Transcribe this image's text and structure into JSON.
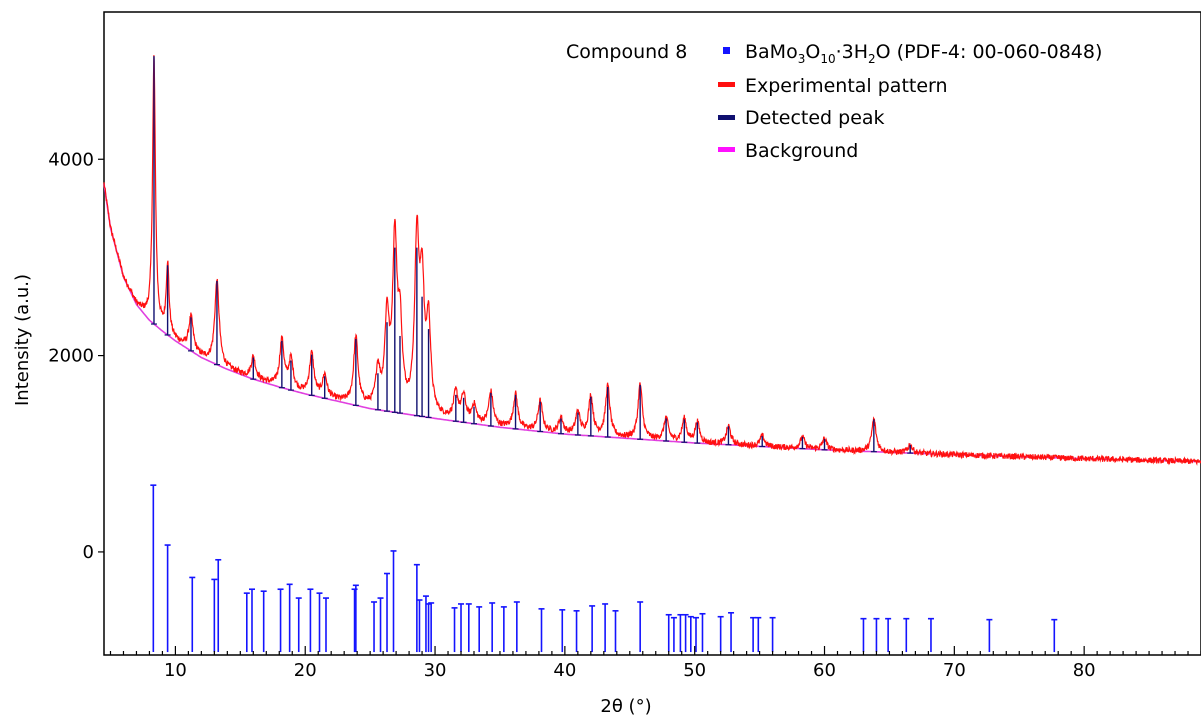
{
  "chart_data": {
    "type": "line",
    "xlabel": "2θ (°)",
    "ylabel": "Intensity (a.u.)",
    "xlim": [
      4.5,
      89
    ],
    "ylim": [
      -1050,
      5500
    ],
    "x_ticks": [
      10,
      20,
      30,
      40,
      50,
      60,
      70,
      80
    ],
    "y_ticks": [
      0,
      2000,
      4000
    ],
    "grid": false,
    "legend_position": "top-right",
    "compound_label": "Compound 8",
    "legend": [
      {
        "label_main": "BaMo",
        "sub1": "3",
        "mid1": "O",
        "sub2": "10",
        "mid2": "·3H",
        "sub3": "2",
        "label_tail": "O (PDF-4: 00-060-0848)",
        "color": "#1414ff",
        "marker": "square"
      },
      {
        "label": "Experimental pattern",
        "color": "#ff1010",
        "marker": "line"
      },
      {
        "label": "Detected peak",
        "color": "#101070",
        "marker": "line"
      },
      {
        "label": "Background",
        "color": "#ff10ff",
        "marker": "line"
      }
    ],
    "background": {
      "name": "Background",
      "color": "#e040e0",
      "x": [
        4.5,
        5,
        6,
        7,
        8,
        9,
        10,
        12,
        14,
        16,
        18,
        20,
        25,
        30,
        35,
        40,
        50,
        60,
        70,
        80,
        89
      ],
      "y": [
        3750,
        3300,
        2800,
        2520,
        2360,
        2250,
        2150,
        1980,
        1860,
        1760,
        1680,
        1610,
        1460,
        1360,
        1270,
        1200,
        1110,
        1040,
        990,
        950,
        920
      ]
    },
    "peaks": {
      "name": "Detected peak",
      "color": "#101070",
      "x": [
        8.35,
        9.4,
        11.2,
        13.2,
        16.0,
        18.2,
        18.9,
        20.5,
        21.5,
        23.9,
        25.6,
        26.3,
        26.9,
        27.3,
        28.6,
        29.0,
        29.5,
        31.6,
        32.2,
        33.0,
        34.3,
        36.2,
        38.1,
        39.7,
        41.0,
        42.0,
        43.3,
        45.8,
        47.8,
        49.2,
        50.2,
        52.6,
        55.2,
        58.3,
        60.0,
        63.8,
        66.6
      ],
      "y": [
        5050,
        2920,
        2390,
        2760,
        1980,
        2150,
        1950,
        2010,
        1790,
        2170,
        1820,
        2340,
        3100,
        2200,
        3100,
        2600,
        2270,
        1600,
        1570,
        1480,
        1620,
        1600,
        1530,
        1360,
        1420,
        1580,
        1680,
        1700,
        1360,
        1350,
        1320,
        1280,
        1180,
        1170,
        1150,
        1350,
        1090
      ]
    },
    "reference": {
      "name": "BaMo3O10·3H2O (PDF-4: 00-060-0848)",
      "color": "#1414ff",
      "baseline": -1020,
      "x": [
        8.3,
        9.4,
        11.3,
        13.0,
        13.3,
        15.5,
        15.9,
        16.8,
        18.1,
        18.8,
        19.5,
        20.4,
        21.1,
        21.6,
        23.8,
        23.9,
        25.3,
        25.8,
        26.3,
        26.8,
        28.6,
        28.8,
        29.3,
        29.5,
        29.7,
        31.5,
        32.0,
        32.6,
        33.4,
        34.4,
        35.3,
        36.3,
        38.2,
        39.8,
        40.9,
        42.1,
        43.1,
        43.9,
        45.8,
        48.0,
        48.4,
        48.9,
        49.3,
        49.7,
        50.1,
        50.6,
        52.0,
        52.8,
        54.5,
        54.9,
        56.0,
        63.0,
        64.0,
        64.9,
        66.3,
        68.2,
        72.7,
        77.7
      ],
      "y": [
        680,
        70,
        -260,
        -280,
        -80,
        -420,
        -380,
        -400,
        -380,
        -330,
        -470,
        -380,
        -420,
        -470,
        -380,
        -340,
        -510,
        -470,
        -220,
        10,
        -130,
        -490,
        -450,
        -530,
        -520,
        -570,
        -530,
        -530,
        -560,
        -520,
        -560,
        -510,
        -580,
        -590,
        -600,
        -550,
        -530,
        -600,
        -510,
        -640,
        -670,
        -640,
        -640,
        -660,
        -670,
        -630,
        -660,
        -620,
        -670,
        -670,
        -670,
        -680,
        -680,
        -680,
        -680,
        -680,
        -690,
        -690
      ]
    },
    "experimental": {
      "name": "Experimental pattern",
      "color": "#ff1010",
      "noise_amplitude": 30
    }
  }
}
